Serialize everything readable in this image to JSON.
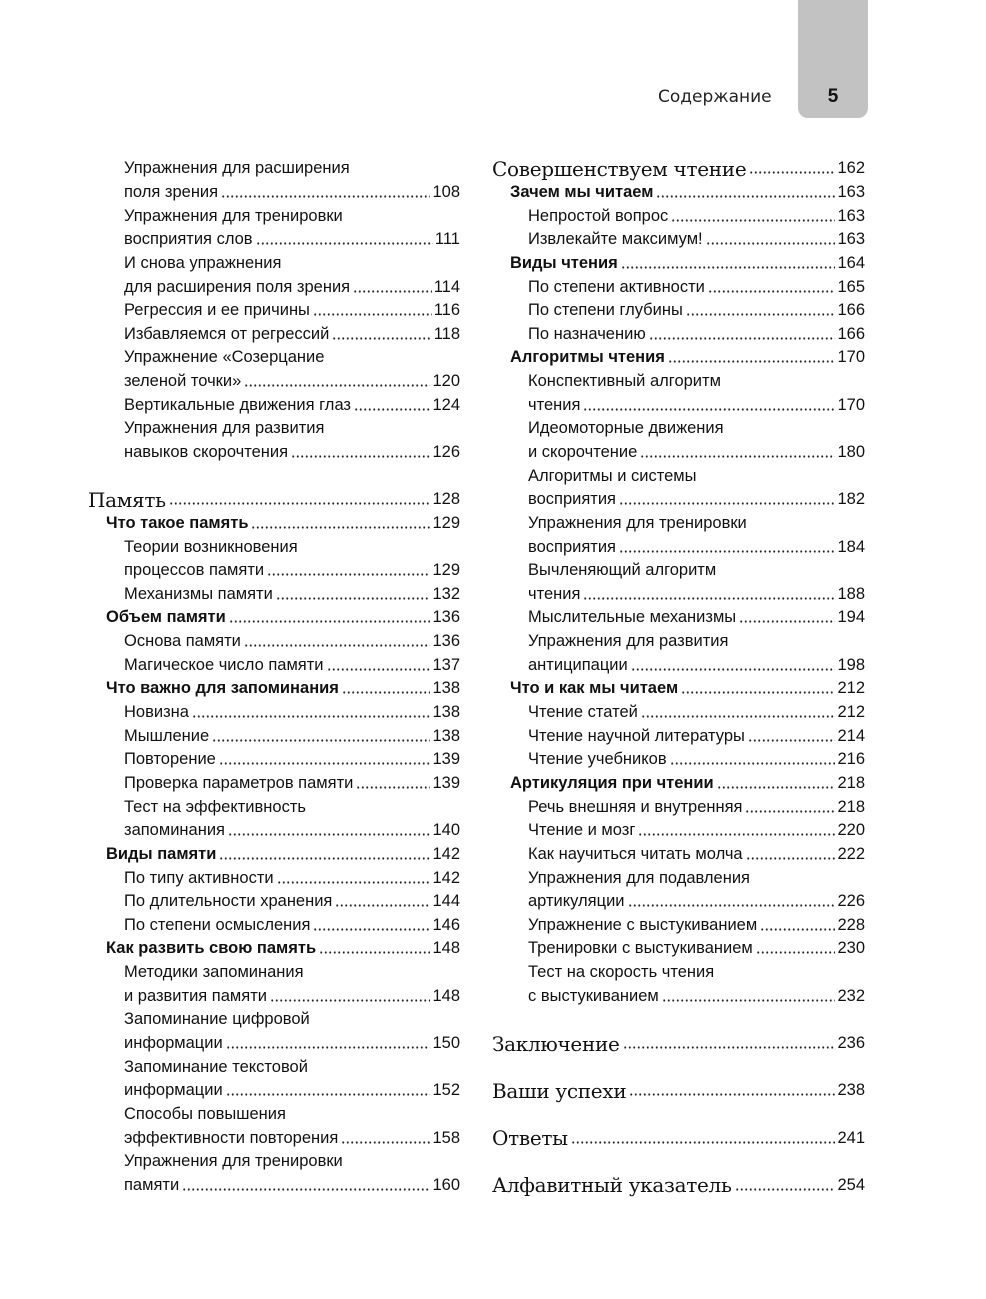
{
  "header": {
    "running_title": "Содержание",
    "page_number": "5",
    "tab_color": "#c2c2c2"
  },
  "left": [
    {
      "lvl": "s",
      "t": "Упражнения для расширения"
    },
    {
      "lvl": "s",
      "t": "поля зрения",
      "p": "108"
    },
    {
      "lvl": "s",
      "t": "Упражнения для тренировки"
    },
    {
      "lvl": "s",
      "t": "восприятия слов",
      "p": "111"
    },
    {
      "lvl": "s",
      "t": "И снова упражнения"
    },
    {
      "lvl": "s",
      "t": "для расширения поля зрения",
      "p": "114"
    },
    {
      "lvl": "s",
      "t": "Регрессия и ее причины",
      "p": "116"
    },
    {
      "lvl": "s",
      "t": "Избавляемся от регрессий",
      "p": "118"
    },
    {
      "lvl": "s",
      "t": "Упражнение «Созерцание"
    },
    {
      "lvl": "s",
      "t": "зеленой точки»",
      "p": "120"
    },
    {
      "lvl": "s",
      "t": "Вертикальные движения глаз",
      "p": "124"
    },
    {
      "lvl": "s",
      "t": "Упражнения для развития"
    },
    {
      "lvl": "s",
      "t": "навыков скорочтения",
      "p": "126"
    },
    {
      "lvl": "blank"
    },
    {
      "lvl": "ch",
      "t": "Память",
      "p": "128"
    },
    {
      "lvl": "b",
      "t": "Что такое память",
      "p": "129"
    },
    {
      "lvl": "s",
      "t": "Теории возникновения"
    },
    {
      "lvl": "s",
      "t": "процессов памяти",
      "p": "129"
    },
    {
      "lvl": "s",
      "t": "Механизмы памяти",
      "p": "132"
    },
    {
      "lvl": "b",
      "t": "Объем памяти",
      "p": "136"
    },
    {
      "lvl": "s",
      "t": "Основа памяти",
      "p": "136"
    },
    {
      "lvl": "s",
      "t": "Магическое число памяти",
      "p": "137"
    },
    {
      "lvl": "b",
      "t": "Что важно для запоминания",
      "p": "138"
    },
    {
      "lvl": "s",
      "t": "Новизна",
      "p": "138"
    },
    {
      "lvl": "s",
      "t": "Мышление",
      "p": "138"
    },
    {
      "lvl": "s",
      "t": "Повторение",
      "p": "139"
    },
    {
      "lvl": "s",
      "t": "Проверка параметров памяти",
      "p": "139"
    },
    {
      "lvl": "s",
      "t": "Тест на эффективность"
    },
    {
      "lvl": "s",
      "t": "запоминания",
      "p": "140"
    },
    {
      "lvl": "b",
      "t": "Виды памяти",
      "p": "142"
    },
    {
      "lvl": "s",
      "t": "По типу активности",
      "p": "142"
    },
    {
      "lvl": "s",
      "t": "По длительности хранения",
      "p": "144"
    },
    {
      "lvl": "s",
      "t": "По степени осмысления",
      "p": "146"
    },
    {
      "lvl": "b",
      "t": "Как развить свою память",
      "p": "148"
    },
    {
      "lvl": "s",
      "t": "Методики запоминания"
    },
    {
      "lvl": "s",
      "t": "и развития памяти",
      "p": "148"
    },
    {
      "lvl": "s",
      "t": "Запоминание цифровой"
    },
    {
      "lvl": "s",
      "t": "информации",
      "p": "150"
    },
    {
      "lvl": "s",
      "t": "Запоминание текстовой"
    },
    {
      "lvl": "s",
      "t": "информации",
      "p": "152"
    },
    {
      "lvl": "s",
      "t": "Способы повышения"
    },
    {
      "lvl": "s",
      "t": "эффективности повторения",
      "p": "158"
    },
    {
      "lvl": "s",
      "t": "Упражнения для тренировки"
    },
    {
      "lvl": "s",
      "t": "памяти",
      "p": "160"
    }
  ],
  "right": [
    {
      "lvl": "ch",
      "t": "Совершенствуем чтение",
      "p": "162"
    },
    {
      "lvl": "b",
      "t": "Зачем мы читаем",
      "p": "163"
    },
    {
      "lvl": "s",
      "t": "Непростой вопрос",
      "p": "163"
    },
    {
      "lvl": "s",
      "t": "Извлекайте максимум!",
      "p": "163"
    },
    {
      "lvl": "b",
      "t": "Виды чтения",
      "p": "164"
    },
    {
      "lvl": "s",
      "t": "По степени активности",
      "p": "165"
    },
    {
      "lvl": "s",
      "t": "По степени глубины",
      "p": "166"
    },
    {
      "lvl": "s",
      "t": "По назначению",
      "p": "166"
    },
    {
      "lvl": "b",
      "t": "Алгоритмы чтения",
      "p": "170"
    },
    {
      "lvl": "s",
      "t": "Конспективный алгоритм"
    },
    {
      "lvl": "s",
      "t": "чтения",
      "p": "170"
    },
    {
      "lvl": "s",
      "t": "Идеомоторные движения"
    },
    {
      "lvl": "s",
      "t": "и скорочтение",
      "p": "180"
    },
    {
      "lvl": "s",
      "t": "Алгоритмы и системы"
    },
    {
      "lvl": "s",
      "t": "восприятия",
      "p": "182"
    },
    {
      "lvl": "s",
      "t": "Упражнения для тренировки"
    },
    {
      "lvl": "s",
      "t": "восприятия",
      "p": "184"
    },
    {
      "lvl": "s",
      "t": "Вычленяющий алгоритм"
    },
    {
      "lvl": "s",
      "t": "чтения",
      "p": "188"
    },
    {
      "lvl": "s",
      "t": "Мыслительные механизмы",
      "p": "194"
    },
    {
      "lvl": "s",
      "t": "Упражнения для развития"
    },
    {
      "lvl": "s",
      "t": "антиципации",
      "p": "198"
    },
    {
      "lvl": "b",
      "t": "Что и как мы читаем",
      "p": "212"
    },
    {
      "lvl": "s",
      "t": "Чтение статей",
      "p": "212"
    },
    {
      "lvl": "s",
      "t": "Чтение научной литературы",
      "p": "214"
    },
    {
      "lvl": "s",
      "t": "Чтение учебников",
      "p": "216"
    },
    {
      "lvl": "b",
      "t": "Артикуляция при чтении",
      "p": "218"
    },
    {
      "lvl": "s",
      "t": "Речь внешняя и внутренняя",
      "p": "218"
    },
    {
      "lvl": "s",
      "t": "Чтение и мозг",
      "p": "220"
    },
    {
      "lvl": "s",
      "t": "Как научиться читать молча",
      "p": "222"
    },
    {
      "lvl": "s",
      "t": "Упражнения для подавления"
    },
    {
      "lvl": "s",
      "t": "артикуляции",
      "p": "226"
    },
    {
      "lvl": "s",
      "t": "Упражнение с выстукиванием",
      "p": "228"
    },
    {
      "lvl": "s",
      "t": "Тренировки с выстукиванием",
      "p": "230"
    },
    {
      "lvl": "s",
      "t": "Тест на скорость чтения"
    },
    {
      "lvl": "s",
      "t": "с выстукиванием",
      "p": "232"
    },
    {
      "lvl": "blank"
    },
    {
      "lvl": "ch",
      "t": "Заключение",
      "p": "236"
    },
    {
      "lvl": "blank"
    },
    {
      "lvl": "ch",
      "t": "Ваши успехи",
      "p": "238"
    },
    {
      "lvl": "blank"
    },
    {
      "lvl": "ch",
      "t": "Ответы",
      "p": "241"
    },
    {
      "lvl": "blank"
    },
    {
      "lvl": "ch",
      "t": "Алфавитный указатель",
      "p": "254"
    }
  ]
}
